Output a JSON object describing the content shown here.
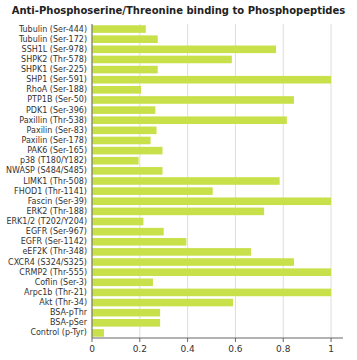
{
  "chart_data": {
    "type": "bar",
    "orientation": "horizontal",
    "title": "Anti-Phosphoserine/Threonine binding to Phosphopeptides",
    "categories": [
      "Tubulin (Ser-444)",
      "Tubulin (Ser-172)",
      "SSH1L (Ser-978)",
      "SHPK2 (Thr-578)",
      "SHPK1 (Ser-225)",
      "SHP1 (Ser-591)",
      "RhoA (Ser-188)",
      "PTP1B (Ser-50)",
      "PDK1 (Ser-396)",
      "Paxillin (Thr-538)",
      "Paxilin (Ser-83)",
      "Paxilin (Ser-178)",
      "PAK6 (Ser-165)",
      "p38 (T180/Y182)",
      "NWASP (S484/S485)",
      "LIMK1 (Thr-508)",
      "FHOD1 (Thr-1141)",
      "Fascin (Ser-39)",
      "ERK2 (Thr-188)",
      "ERK1/2 (T202/Y204)",
      "EGFR (Ser-967)",
      "EGFR (Ser-1142)",
      "eEF2K (Thr-348)",
      "CXCR4 (S324/S325)",
      "CRMP2 (Thr-555)",
      "Coflin (Ser-3)",
      "Arpc1b (Thr-21)",
      "Akt (Thr-34)",
      "BSA-pThr",
      "BSA-pSer",
      "Control (p-Tyr)"
    ],
    "values": [
      0.225,
      0.275,
      0.77,
      0.585,
      0.275,
      1.0,
      0.205,
      0.845,
      0.265,
      0.815,
      0.27,
      0.245,
      0.295,
      0.195,
      0.295,
      0.785,
      0.505,
      1.0,
      0.72,
      0.215,
      0.3,
      0.395,
      0.665,
      0.845,
      1.0,
      0.255,
      1.0,
      0.59,
      0.285,
      0.285,
      0.05
    ],
    "color": "#c8e04a",
    "xlim": [
      0,
      1.05
    ],
    "xticks": [
      0,
      0.2,
      0.4,
      0.6,
      0.8,
      1
    ],
    "grid": true
  }
}
